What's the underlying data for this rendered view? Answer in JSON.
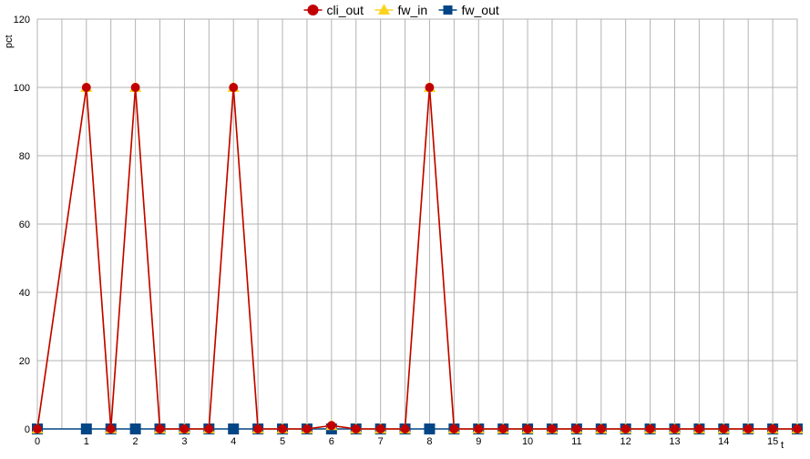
{
  "chart_data": {
    "type": "line",
    "title": "",
    "xlabel": "t",
    "ylabel": "pct",
    "xlim": [
      0,
      15.5
    ],
    "ylim": [
      0,
      120
    ],
    "x_ticks": [
      0,
      1,
      2,
      3,
      4,
      5,
      6,
      7,
      8,
      9,
      10,
      11,
      12,
      13,
      14,
      15
    ],
    "y_ticks": [
      0,
      20,
      40,
      60,
      80,
      100,
      120
    ],
    "grid": true,
    "legend_position": "top-center",
    "x": [
      0,
      1,
      1.5,
      2,
      2.5,
      3,
      3.5,
      4,
      4.5,
      5,
      5.5,
      6,
      6.5,
      7,
      7.5,
      8,
      8.5,
      9,
      9.5,
      10,
      10.5,
      11,
      11.5,
      12,
      12.5,
      13,
      13.5,
      14,
      14.5,
      15,
      15.5
    ],
    "series": [
      {
        "name": "cli_out",
        "color": "#c00000",
        "marker": "circle",
        "values": [
          0,
          100,
          0,
          100,
          0,
          0,
          0,
          100,
          0,
          0,
          0,
          1,
          0,
          0,
          0,
          100,
          0,
          0,
          0,
          0,
          0,
          0,
          0,
          0,
          0,
          0,
          0,
          0,
          0,
          0,
          0
        ]
      },
      {
        "name": "fw_in",
        "color": "#ffd320",
        "marker": "triangle",
        "values": [
          0,
          100,
          0,
          100,
          0,
          0,
          0,
          100,
          0,
          0,
          0,
          1,
          0,
          0,
          0,
          100,
          0,
          0,
          0,
          0,
          0,
          0,
          0,
          0,
          0,
          0,
          0,
          0,
          0,
          0,
          0
        ]
      },
      {
        "name": "fw_out",
        "color": "#004586",
        "marker": "square",
        "values": [
          0,
          0,
          0,
          0,
          0,
          0,
          0,
          0,
          0,
          0,
          0,
          0,
          0,
          0,
          0,
          0,
          0,
          0,
          0,
          0,
          0,
          0,
          0,
          0,
          0,
          0,
          0,
          0,
          0,
          0,
          0
        ]
      }
    ]
  }
}
